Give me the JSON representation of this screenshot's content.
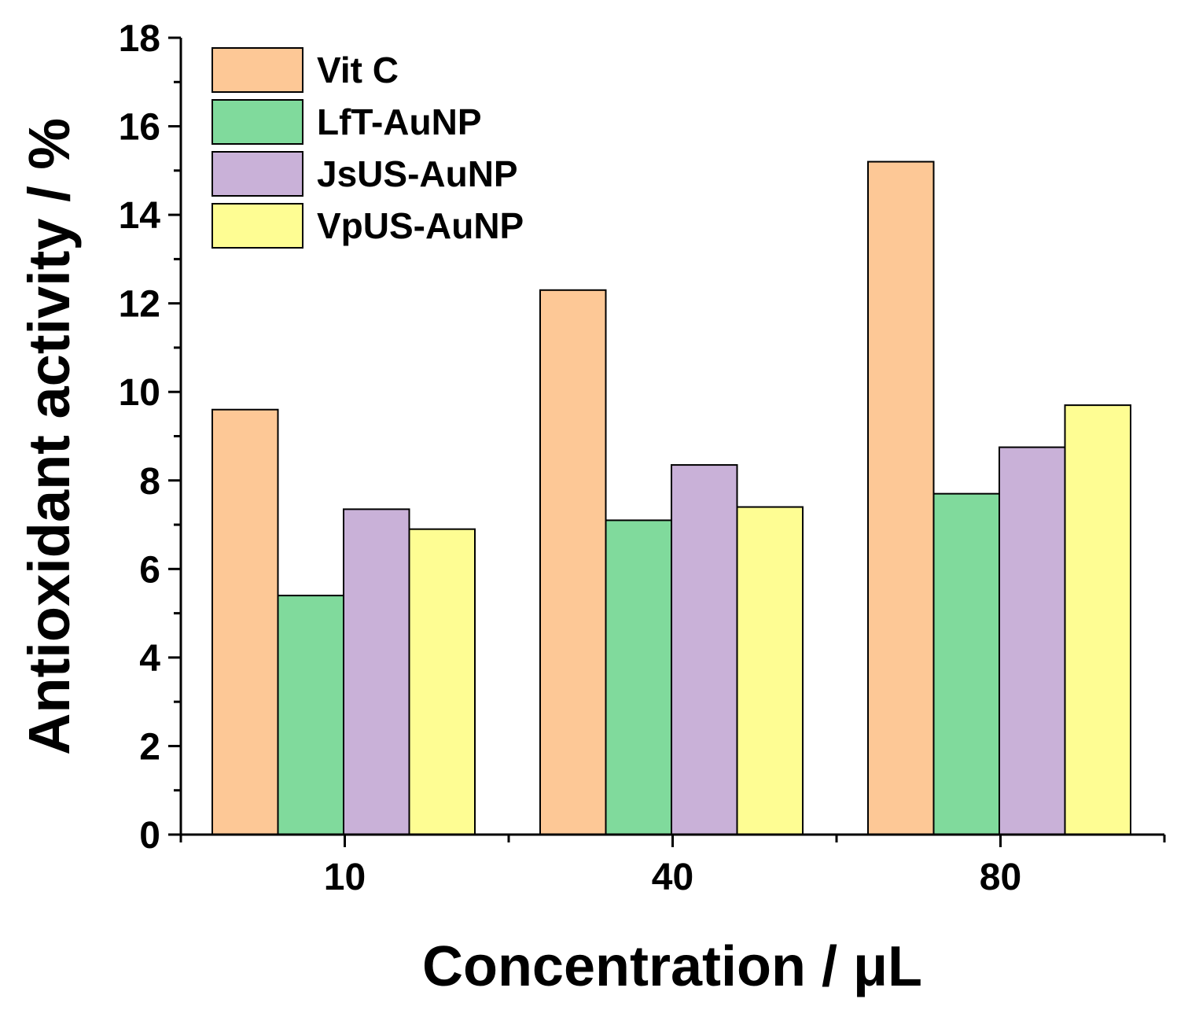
{
  "chart_data": {
    "type": "bar",
    "categories": [
      "10",
      "40",
      "80"
    ],
    "series": [
      {
        "name": "Vit C",
        "color": "#FDC896",
        "values": [
          9.6,
          12.3,
          15.2
        ]
      },
      {
        "name": "LfT-AuNP",
        "color": "#80DA9C",
        "values": [
          5.4,
          7.1,
          7.7
        ]
      },
      {
        "name": "JsUS-AuNP",
        "color": "#C9B1D8",
        "values": [
          7.35,
          8.35,
          8.75
        ]
      },
      {
        "name": "VpUS-AuNP",
        "color": "#FEFD93",
        "values": [
          6.9,
          7.4,
          9.7
        ]
      }
    ],
    "xlabel": "Concentration / μL",
    "ylabel": "Antioxidant activity / %",
    "ylim": [
      0,
      18
    ],
    "yticks": [
      "0",
      "2",
      "4",
      "6",
      "8",
      "10",
      "12",
      "14",
      "16",
      "18"
    ],
    "legend_position": "top-left",
    "grid": false
  }
}
